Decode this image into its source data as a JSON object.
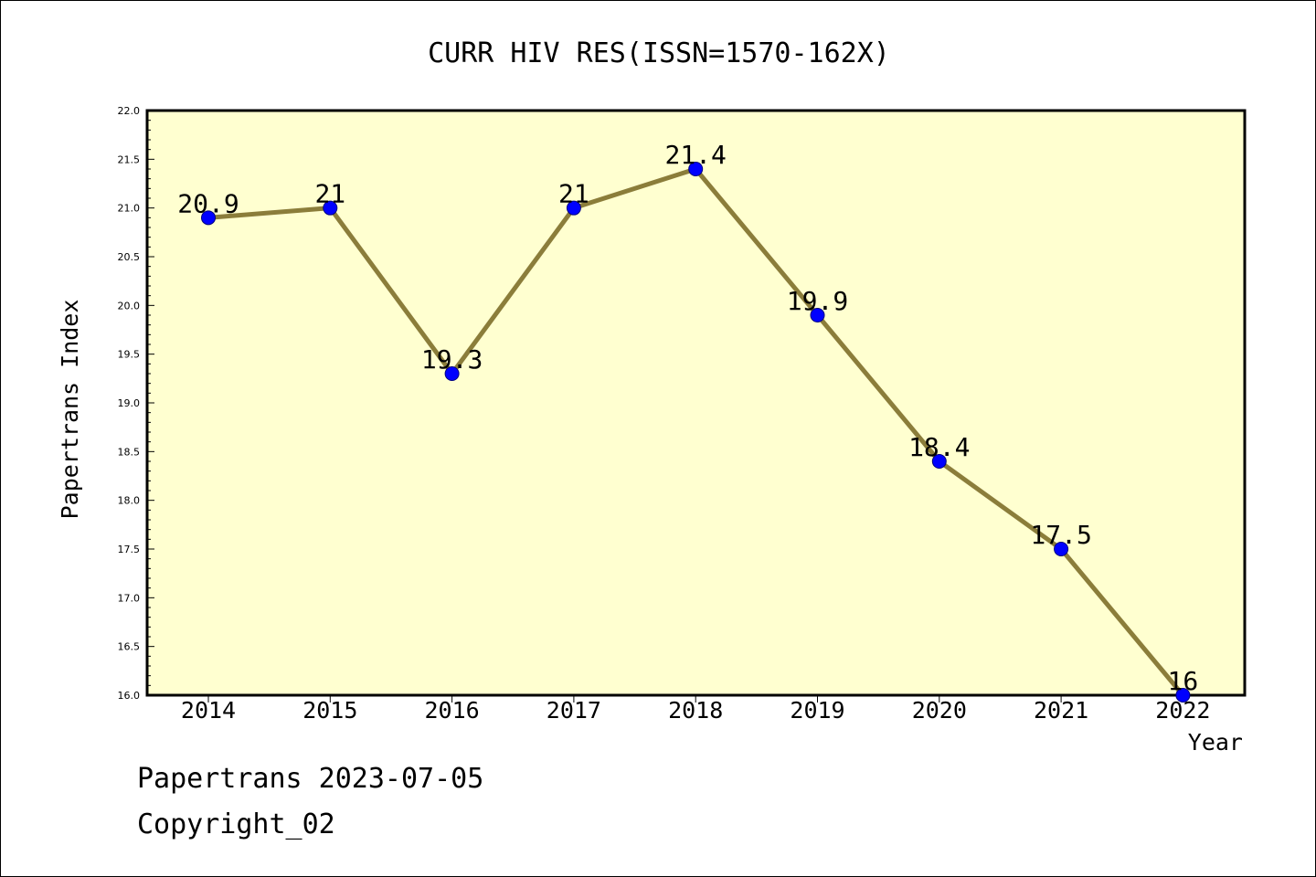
{
  "chart_data": {
    "type": "line",
    "title": "CURR HIV RES(ISSN=1570-162X)",
    "xlabel": "Year",
    "ylabel": "Papertrans Index",
    "categories": [
      "2014",
      "2015",
      "2016",
      "2017",
      "2018",
      "2019",
      "2020",
      "2021",
      "2022"
    ],
    "series": [
      {
        "values": [
          20.9,
          21,
          19.3,
          21,
          21.4,
          19.9,
          18.4,
          17.5,
          16
        ],
        "data_labels": [
          "20.9",
          "21",
          "19.3",
          "21",
          "21.4",
          "19.9",
          "18.4",
          "17.5",
          "16"
        ]
      }
    ],
    "ylim": [
      16.0,
      22.0
    ],
    "yticks": [
      "16.0",
      "16.5",
      "17.0",
      "17.5",
      "18.0",
      "18.5",
      "19.0",
      "19.5",
      "20.0",
      "20.5",
      "21.0",
      "21.5",
      "22.0"
    ],
    "grid": false,
    "legend": "none",
    "colors": {
      "plot_background": "#ffffd0",
      "line": "#8b7d3a",
      "marker": "#0000ff",
      "marker_edge": "#000080",
      "axis": "#000000"
    }
  },
  "footer": {
    "line1": "Papertrans 2023-07-05",
    "line2": "Copyright_02"
  }
}
